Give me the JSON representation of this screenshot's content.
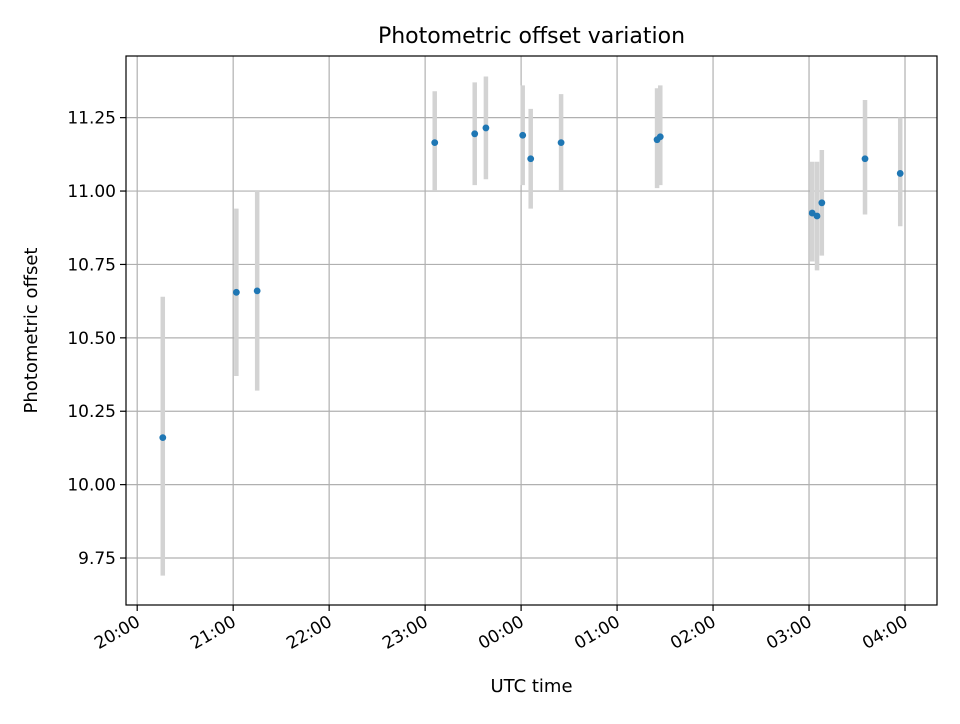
{
  "chart_data": {
    "type": "scatter",
    "title": "Photometric offset variation",
    "xlabel": "UTC time",
    "ylabel": "Photometric offset",
    "x_ticks": [
      "20:00",
      "21:00",
      "22:00",
      "23:00",
      "00:00",
      "01:00",
      "02:00",
      "03:00",
      "04:00"
    ],
    "y_ticks": [
      "9.75",
      "10.00",
      "10.25",
      "10.50",
      "10.75",
      "11.00",
      "11.25"
    ],
    "xlim": [
      "19:53",
      "04:20"
    ],
    "ylim": [
      9.59,
      11.46
    ],
    "grid": true,
    "series": [
      {
        "style": "points with vertical error bars",
        "point_color": "#1f77b4",
        "errorbar_color": "#d3d3d3",
        "points": [
          {
            "x": "20:16",
            "y": 10.16,
            "ylow": 9.69,
            "yhigh": 10.64
          },
          {
            "x": "21:02",
            "y": 10.655,
            "ylow": 10.37,
            "yhigh": 10.94
          },
          {
            "x": "21:15",
            "y": 10.66,
            "ylow": 10.32,
            "yhigh": 11.0
          },
          {
            "x": "23:06",
            "y": 11.165,
            "ylow": 11.0,
            "yhigh": 11.34
          },
          {
            "x": "23:31",
            "y": 11.195,
            "ylow": 11.02,
            "yhigh": 11.37
          },
          {
            "x": "23:38",
            "y": 11.215,
            "ylow": 11.04,
            "yhigh": 11.39
          },
          {
            "x": "00:01",
            "y": 11.19,
            "ylow": 11.02,
            "yhigh": 11.36
          },
          {
            "x": "00:06",
            "y": 11.11,
            "ylow": 10.94,
            "yhigh": 11.28
          },
          {
            "x": "00:25",
            "y": 11.165,
            "ylow": 11.0,
            "yhigh": 11.33
          },
          {
            "x": "01:25",
            "y": 11.175,
            "ylow": 11.01,
            "yhigh": 11.35
          },
          {
            "x": "01:27",
            "y": 11.185,
            "ylow": 11.02,
            "yhigh": 11.36
          },
          {
            "x": "03:02",
            "y": 10.925,
            "ylow": 10.76,
            "yhigh": 11.1
          },
          {
            "x": "03:05",
            "y": 10.915,
            "ylow": 10.73,
            "yhigh": 11.1
          },
          {
            "x": "03:08",
            "y": 10.96,
            "ylow": 10.78,
            "yhigh": 11.14
          },
          {
            "x": "03:35",
            "y": 11.11,
            "ylow": 10.92,
            "yhigh": 11.31
          },
          {
            "x": "03:57",
            "y": 11.06,
            "ylow": 10.88,
            "yhigh": 11.25
          }
        ]
      }
    ]
  }
}
